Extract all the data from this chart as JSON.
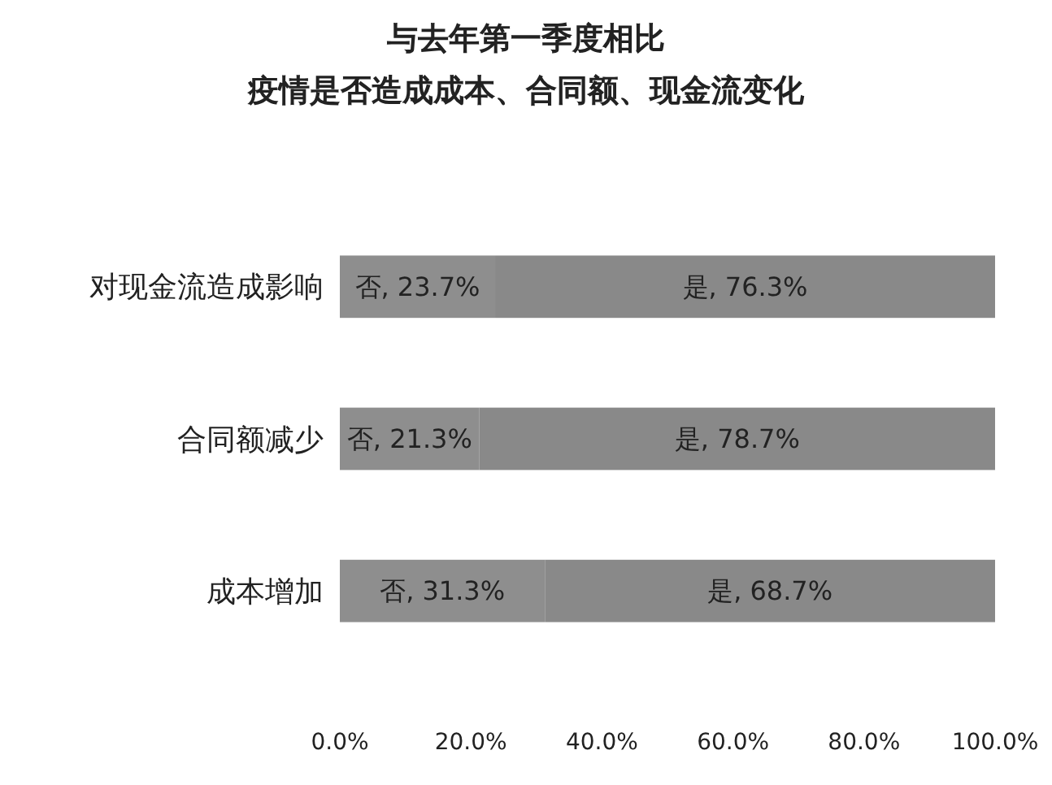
{
  "chart_data": {
    "type": "bar",
    "orientation": "horizontal",
    "stacked": true,
    "title": "与去年第一季度相比",
    "subtitle": "疫情是否造成成本、合同额、现金流变化",
    "categories": [
      "对现金流造成影响",
      "合同额减少",
      "成本增加"
    ],
    "series": [
      {
        "color": "#8e8e8e",
        "values": [
          23.7,
          21.3,
          31.3
        ],
        "value_labels": [
          "否, 23.7%",
          "否, 21.3%",
          "否, 31.3%"
        ]
      },
      {
        "color": "#898989",
        "values": [
          76.3,
          78.7,
          68.7
        ],
        "value_labels": [
          "是, 76.3%",
          "是, 78.7%",
          "是, 68.7%"
        ]
      }
    ],
    "xlim": [
      0,
      100
    ],
    "xticks": [
      {
        "value": 0,
        "label": "0.0%"
      },
      {
        "value": 20,
        "label": "20.0%"
      },
      {
        "value": 40,
        "label": "40.0%"
      },
      {
        "value": 60,
        "label": "60.0%"
      },
      {
        "value": 80,
        "label": "80.0%"
      },
      {
        "value": 100,
        "label": "100.0%"
      }
    ],
    "grid": false,
    "legend": false
  }
}
